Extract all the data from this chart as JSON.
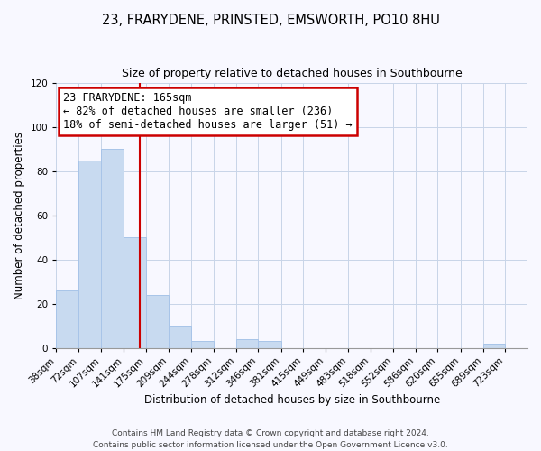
{
  "title": "23, FRARYDENE, PRINSTED, EMSWORTH, PO10 8HU",
  "subtitle": "Size of property relative to detached houses in Southbourne",
  "xlabel": "Distribution of detached houses by size in Southbourne",
  "ylabel": "Number of detached properties",
  "bar_color": "#c8daf0",
  "bar_edge_color": "#a8c4e8",
  "bin_labels": [
    "38sqm",
    "72sqm",
    "107sqm",
    "141sqm",
    "175sqm",
    "209sqm",
    "244sqm",
    "278sqm",
    "312sqm",
    "346sqm",
    "381sqm",
    "415sqm",
    "449sqm",
    "483sqm",
    "518sqm",
    "552sqm",
    "586sqm",
    "620sqm",
    "655sqm",
    "689sqm",
    "723sqm"
  ],
  "bar_heights": [
    26,
    85,
    90,
    50,
    24,
    10,
    3,
    0,
    4,
    3,
    0,
    0,
    0,
    0,
    0,
    0,
    0,
    0,
    0,
    2,
    0
  ],
  "ylim": [
    0,
    120
  ],
  "yticks": [
    0,
    20,
    40,
    60,
    80,
    100,
    120
  ],
  "vline_x": 165,
  "vline_color": "#cc0000",
  "annotation_title": "23 FRARYDENE: 165sqm",
  "annotation_line1": "← 82% of detached houses are smaller (236)",
  "annotation_line2": "18% of semi-detached houses are larger (51) →",
  "annotation_box_color": "#ffffff",
  "annotation_box_edge_color": "#cc0000",
  "footer1": "Contains HM Land Registry data © Crown copyright and database right 2024.",
  "footer2": "Contains public sector information licensed under the Open Government Licence v3.0.",
  "bin_edges": [
    38,
    72,
    107,
    141,
    175,
    209,
    244,
    278,
    312,
    346,
    381,
    415,
    449,
    483,
    518,
    552,
    586,
    620,
    655,
    689,
    723,
    757
  ],
  "background_color": "#f8f8ff",
  "grid_color": "#c8d4e8",
  "title_fontsize": 10.5,
  "subtitle_fontsize": 9,
  "xlabel_fontsize": 8.5,
  "ylabel_fontsize": 8.5,
  "tick_fontsize": 7.5,
  "footer_fontsize": 6.5,
  "annotation_fontsize": 8.5
}
